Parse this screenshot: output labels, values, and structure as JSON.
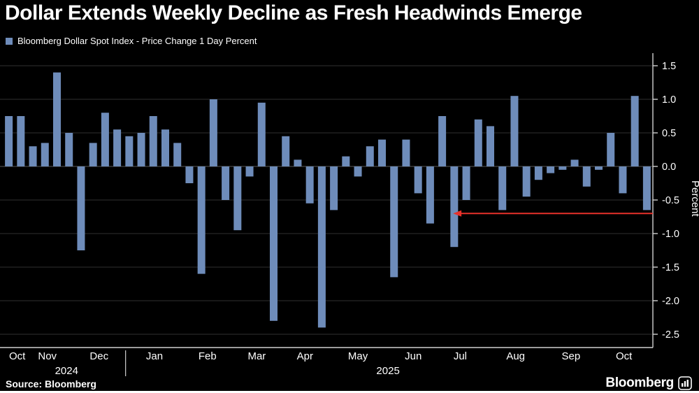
{
  "title": "Dollar Extends Weekly Decline as Fresh Headwinds Emerge",
  "legend": {
    "label": "Bloomberg Dollar Spot Index - Price Change 1 Day Percent",
    "swatch_color": "#6e8cba"
  },
  "footer": {
    "source_label": "Source: Bloomberg",
    "brand": "Bloomberg"
  },
  "colors": {
    "background": "#000000",
    "bar": "#6e8cba",
    "grid": "#2f2f2f",
    "zero_line": "#585858",
    "axis": "#cfcfcf",
    "text": "#ffffff",
    "arrow": "#e8312a"
  },
  "chart_data": {
    "type": "bar",
    "title": "Bloomberg Dollar Spot Index - Price Change 1 Day Percent",
    "xlabel": "",
    "ylabel": "Percent",
    "ylim": [
      -2.75,
      1.75
    ],
    "y_ticks": [
      1.5,
      1.0,
      0.5,
      0.0,
      -0.5,
      -1.0,
      -1.5,
      -2.0,
      -2.5
    ],
    "x_unit": "weekly bars, Oct 2024 - Oct 2025",
    "values": [
      0.75,
      0.75,
      0.3,
      0.35,
      1.4,
      0.5,
      -1.25,
      0.35,
      0.8,
      0.55,
      0.45,
      0.5,
      0.75,
      0.55,
      0.35,
      -0.25,
      -1.6,
      1.0,
      -0.5,
      -0.95,
      -0.15,
      0.95,
      -2.3,
      0.45,
      0.1,
      -0.55,
      -2.4,
      -0.65,
      0.15,
      -0.15,
      0.3,
      0.4,
      -1.65,
      0.4,
      -0.4,
      -0.85,
      0.75,
      -1.2,
      -0.5,
      0.7,
      0.6,
      -0.65,
      1.05,
      -0.45,
      -0.2,
      -0.1,
      -0.05,
      0.1,
      -0.3,
      -0.05,
      0.5,
      -0.4,
      1.05,
      -0.65
    ],
    "x_month_labels": [
      {
        "label": "Oct",
        "i": 1.2
      },
      {
        "label": "Nov",
        "i": 3.7
      },
      {
        "label": "Dec",
        "i": 8.0
      },
      {
        "label": "Jan",
        "i": 12.6
      },
      {
        "label": "Feb",
        "i": 17.0
      },
      {
        "label": "Mar",
        "i": 21.1
      },
      {
        "label": "Apr",
        "i": 25.1
      },
      {
        "label": "May",
        "i": 29.5
      },
      {
        "label": "Jun",
        "i": 34.1
      },
      {
        "label": "Jul",
        "i": 38.0
      },
      {
        "label": "Aug",
        "i": 42.6
      },
      {
        "label": "Sep",
        "i": 47.2
      },
      {
        "label": "Oct",
        "i": 51.6
      }
    ],
    "x_year_labels": [
      {
        "label": "2024",
        "i": 5.3
      },
      {
        "label": "2025",
        "i": 32.0
      }
    ],
    "year_separator_index": 10.2,
    "legend_position": "top-left",
    "grid": true,
    "annotation_arrow": {
      "y": -0.7,
      "from_index": 54,
      "to_index": 37.4,
      "direction": "left"
    }
  }
}
